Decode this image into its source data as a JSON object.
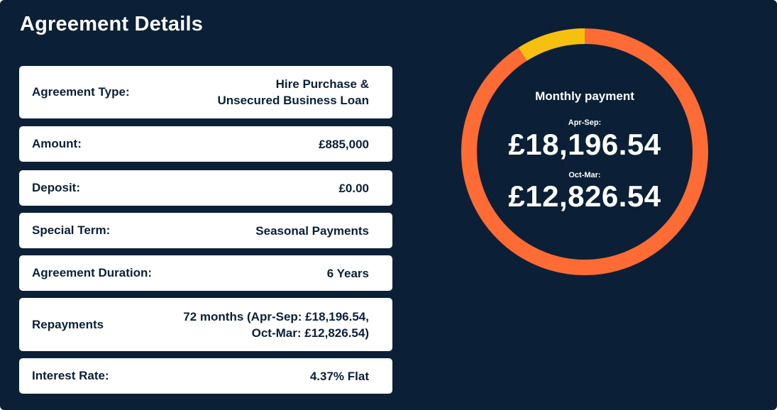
{
  "title": "Agreement Details",
  "rows": [
    {
      "label": "Agreement Type:",
      "value_line1": "Hire Purchase &",
      "value_line2": "Unsecured Business Loan"
    },
    {
      "label": "Amount:",
      "value_line1": "£885,000"
    },
    {
      "label": "Deposit:",
      "value_line1": "£0.00"
    },
    {
      "label": "Special Term:",
      "value_line1": "Seasonal Payments"
    },
    {
      "label": "Agreement Duration:",
      "value_line1": "6 Years"
    },
    {
      "label": "Repayments",
      "value_line1": "72 months (Apr-Sep: £18,196.54,",
      "value_line2": "Oct-Mar: £12,826.54)"
    },
    {
      "label": "Interest Rate:",
      "value_line1": "4.37% Flat"
    }
  ],
  "payment_ring": {
    "heading": "Monthly payment",
    "period1_label": "Apr-Sep:",
    "period1_amount": "£18,196.54",
    "period2_label": "Oct-Mar:",
    "period2_amount": "£12,826.54",
    "segments": [
      {
        "name": "highlight",
        "fraction": 0.09,
        "color": "#f6c10e"
      },
      {
        "name": "main",
        "fraction": 0.91,
        "color": "#ff6b35"
      }
    ]
  },
  "colors": {
    "background": "#0b2036",
    "card": "#ffffff",
    "text_dark": "#0b2036",
    "ring_orange": "#ff6b35",
    "ring_yellow": "#f6c10e"
  }
}
